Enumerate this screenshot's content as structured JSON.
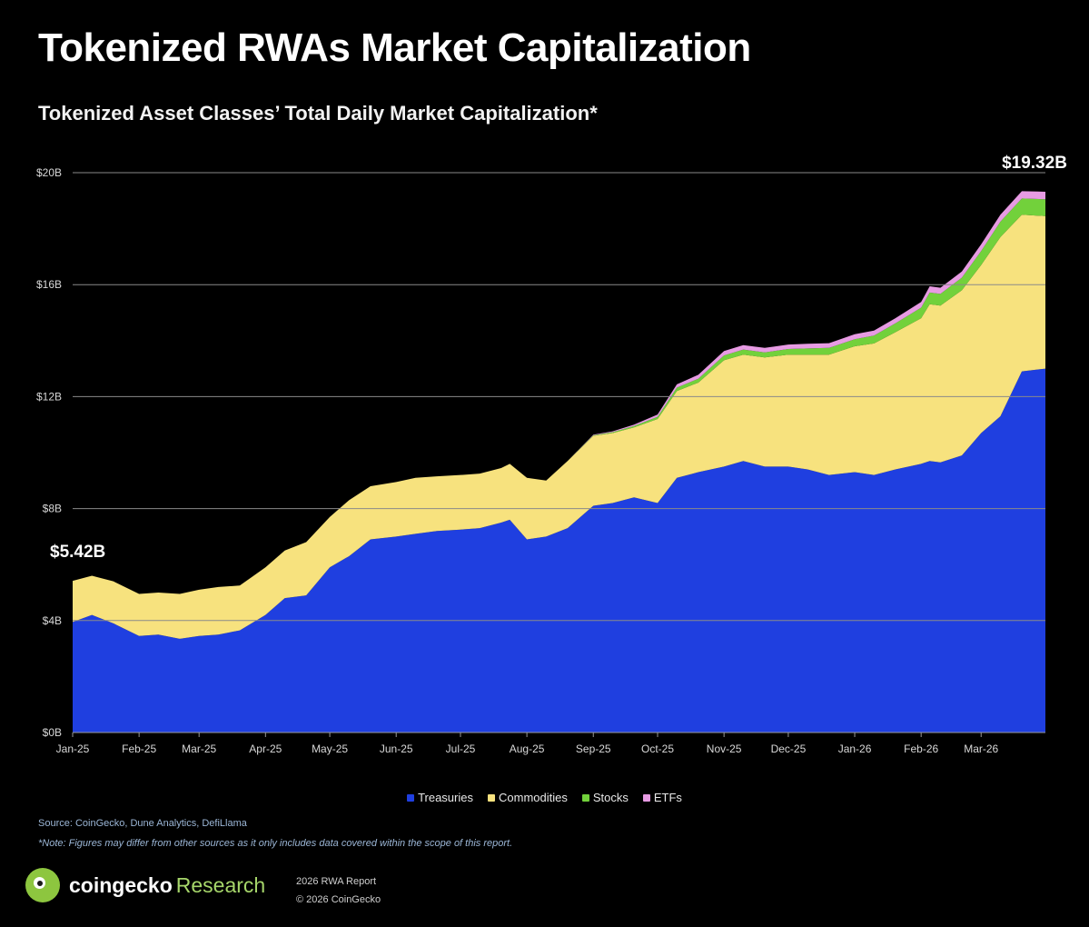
{
  "header": {
    "title": "Tokenized RWAs Market Capitalization",
    "subtitle": "Tokenized Asset Classes’ Total Daily Market Capitalization*"
  },
  "chart_data": {
    "type": "area",
    "stacked": true,
    "unit": "B",
    "ylim": [
      0,
      20
    ],
    "yticks": [
      0,
      4,
      8,
      12,
      16,
      20
    ],
    "ytick_labels": [
      "$0B",
      "$4B",
      "$8B",
      "$12B",
      "$16B",
      "$20B"
    ],
    "xlim": [
      "2025-01-01",
      "2026-03-31"
    ],
    "xtick_labels": [
      "Jan-25",
      "Feb-25",
      "Mar-25",
      "Apr-25",
      "May-25",
      "Jun-25",
      "Jul-25",
      "Aug-25",
      "Sep-25",
      "Oct-25",
      "Nov-25",
      "Dec-25",
      "Jan-26",
      "Feb-26",
      "Mar-26"
    ],
    "xtick_dates": [
      "2025-01-01",
      "2025-02-01",
      "2025-03-01",
      "2025-04-01",
      "2025-05-01",
      "2025-06-01",
      "2025-07-01",
      "2025-08-01",
      "2025-09-01",
      "2025-10-01",
      "2025-11-01",
      "2025-12-01",
      "2026-01-01",
      "2026-02-01",
      "2026-03-01"
    ],
    "x": [
      "2025-01-01",
      "2025-01-10",
      "2025-01-20",
      "2025-02-01",
      "2025-02-10",
      "2025-02-20",
      "2025-03-01",
      "2025-03-10",
      "2025-03-20",
      "2025-04-01",
      "2025-04-10",
      "2025-04-20",
      "2025-05-01",
      "2025-05-10",
      "2025-05-20",
      "2025-06-01",
      "2025-06-10",
      "2025-06-20",
      "2025-07-01",
      "2025-07-10",
      "2025-07-20",
      "2025-07-24",
      "2025-08-01",
      "2025-08-10",
      "2025-08-20",
      "2025-09-01",
      "2025-09-10",
      "2025-09-20",
      "2025-10-01",
      "2025-10-10",
      "2025-10-20",
      "2025-11-01",
      "2025-11-10",
      "2025-11-20",
      "2025-12-01",
      "2025-12-10",
      "2025-12-20",
      "2026-01-01",
      "2026-01-10",
      "2026-01-20",
      "2026-02-01",
      "2026-02-05",
      "2026-02-10",
      "2026-02-20",
      "2026-03-01",
      "2026-03-10",
      "2026-03-20",
      "2026-03-31"
    ],
    "series": [
      {
        "name": "Treasuries",
        "color": "#1f3fe0",
        "values": [
          3.95,
          4.2,
          3.9,
          3.45,
          3.5,
          3.35,
          3.45,
          3.5,
          3.65,
          4.2,
          4.8,
          4.9,
          5.9,
          6.3,
          6.9,
          7.0,
          7.1,
          7.2,
          7.25,
          7.3,
          7.5,
          7.6,
          6.9,
          7.0,
          7.3,
          8.1,
          8.2,
          8.4,
          8.2,
          9.1,
          9.3,
          9.5,
          9.7,
          9.5,
          9.5,
          9.4,
          9.2,
          9.3,
          9.2,
          9.4,
          9.6,
          9.7,
          9.65,
          9.9,
          10.7,
          11.3,
          12.9,
          13.0
        ]
      },
      {
        "name": "Commodities",
        "color": "#f7e27e",
        "values": [
          1.47,
          1.4,
          1.5,
          1.5,
          1.5,
          1.6,
          1.65,
          1.7,
          1.6,
          1.7,
          1.7,
          1.9,
          1.8,
          2.0,
          1.9,
          1.95,
          2.0,
          1.95,
          1.95,
          1.95,
          1.95,
          2.0,
          2.2,
          2.0,
          2.4,
          2.5,
          2.5,
          2.5,
          3.0,
          3.1,
          3.2,
          3.8,
          3.8,
          3.9,
          4.0,
          4.1,
          4.3,
          4.5,
          4.7,
          4.9,
          5.2,
          5.6,
          5.6,
          5.9,
          6.0,
          6.4,
          5.6,
          5.45
        ]
      },
      {
        "name": "Stocks",
        "color": "#72d13b",
        "values": [
          0,
          0,
          0,
          0,
          0,
          0,
          0,
          0,
          0,
          0,
          0,
          0,
          0,
          0,
          0,
          0,
          0,
          0,
          0,
          0,
          0,
          0,
          0,
          0,
          0,
          0.02,
          0.03,
          0.05,
          0.08,
          0.12,
          0.14,
          0.17,
          0.18,
          0.18,
          0.2,
          0.22,
          0.24,
          0.25,
          0.28,
          0.32,
          0.38,
          0.42,
          0.42,
          0.45,
          0.5,
          0.55,
          0.58,
          0.6
        ]
      },
      {
        "name": "ETFs",
        "color": "#e79be3",
        "values": [
          0,
          0,
          0,
          0,
          0,
          0,
          0,
          0,
          0,
          0,
          0,
          0,
          0,
          0,
          0,
          0,
          0,
          0,
          0,
          0,
          0,
          0,
          0,
          0,
          0,
          0.02,
          0.03,
          0.05,
          0.08,
          0.12,
          0.14,
          0.16,
          0.16,
          0.16,
          0.16,
          0.17,
          0.17,
          0.18,
          0.18,
          0.18,
          0.2,
          0.22,
          0.22,
          0.22,
          0.24,
          0.25,
          0.26,
          0.27
        ]
      }
    ],
    "annotations": [
      {
        "text": "$5.42B",
        "x": "2025-01-01",
        "y": 5.42
      },
      {
        "text": "$19.32B",
        "x": "2026-03-31",
        "y": 19.32
      }
    ],
    "legend": {
      "placement": "bottom-center"
    },
    "grid": {
      "horizontal": true,
      "vertical": false
    }
  },
  "footer": {
    "source": "Source: CoinGecko, Dune Analytics, DefiLlama",
    "note": "*Note: Figures may differ from other sources as it only includes data covered within the scope of this report.",
    "brand_name": "coingecko",
    "brand_sub": "Research",
    "report": "2026 RWA Report",
    "copyright": "© 2026 CoinGecko"
  }
}
